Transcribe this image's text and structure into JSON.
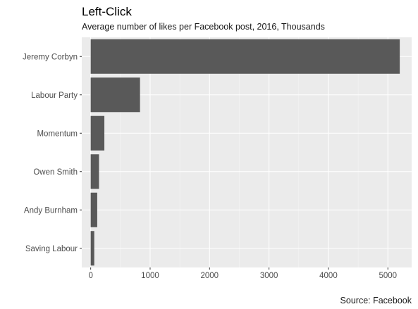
{
  "chart_data": {
    "type": "bar",
    "orientation": "horizontal",
    "title": "Left-Click",
    "subtitle": "Average number of likes per Facebook post, 2016, Thousands",
    "caption": "Source: Facebook",
    "categories": [
      "Jeremy Corbyn",
      "Labour Party",
      "Momentum",
      "Owen Smith",
      "Andy Burnham",
      "Saving Labour"
    ],
    "values": [
      5200,
      830,
      230,
      140,
      110,
      60
    ],
    "xlim": [
      -150,
      5400
    ],
    "x_ticks": [
      0,
      1000,
      2000,
      3000,
      4000,
      5000
    ],
    "x_tick_labels": [
      "0",
      "1000",
      "2000",
      "3000",
      "4000",
      "5000"
    ],
    "xlabel": "",
    "ylabel": "",
    "grid": true,
    "colors": {
      "panel": "#ebebeb",
      "bar": "#595959",
      "grid_major": "#ffffff",
      "grid_minor": "#f5f5f5",
      "tick": "#333333"
    }
  }
}
